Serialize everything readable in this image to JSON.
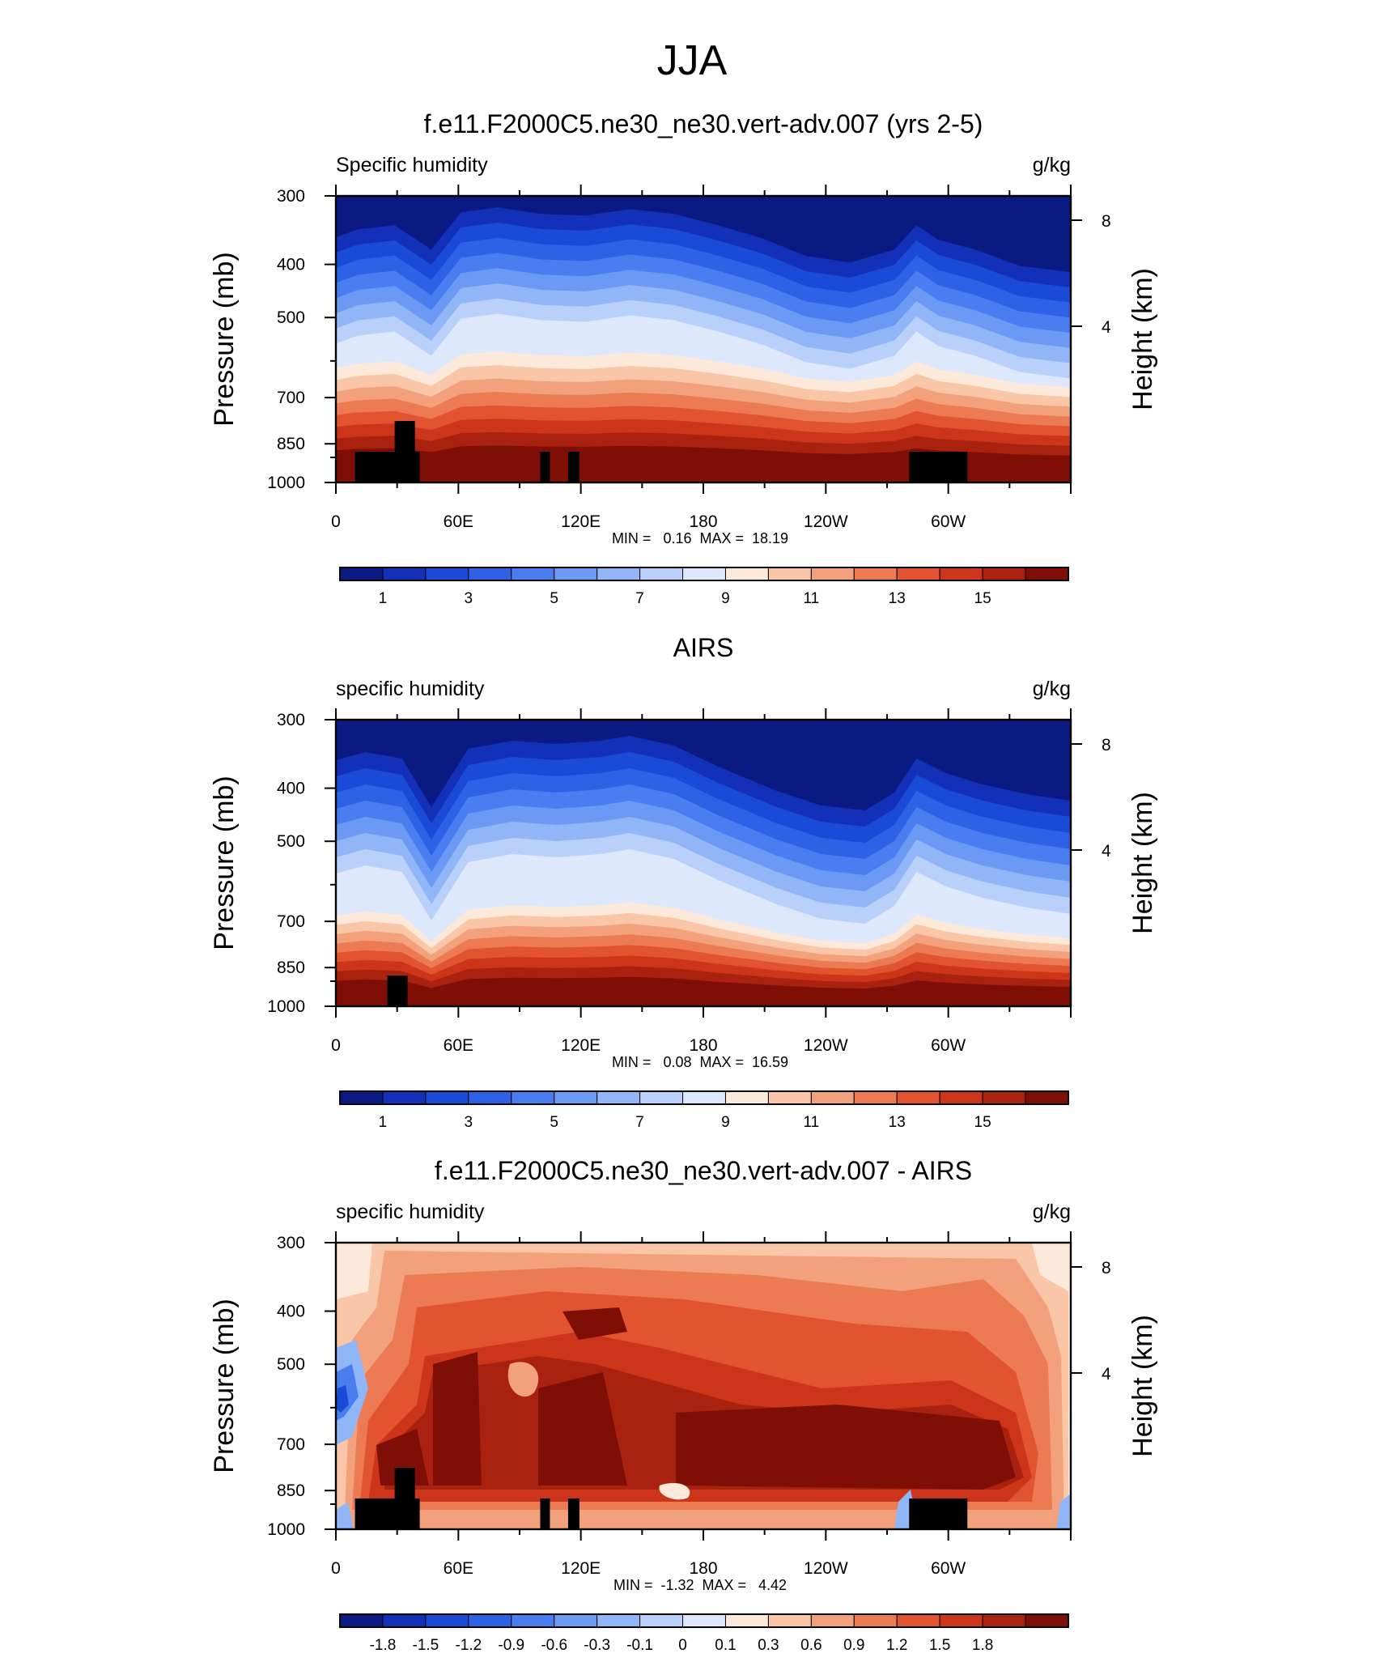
{
  "page": {
    "title": "JJA"
  },
  "chart_data": [
    {
      "type": "heatmap",
      "title": "f.e11.F2000C5.ne30_ne30.vert-adv.007 (yrs 2-5)",
      "left_label": "Specific humidity",
      "units": "g/kg",
      "ylabel": "Pressure (mb)",
      "ylabel_right": "Height (km)",
      "x_ticks": [
        "0",
        "60E",
        "120E",
        "180",
        "120W",
        "60W"
      ],
      "y_ticks": [
        "300",
        "400",
        "500",
        "700",
        "850",
        "1000"
      ],
      "y_ticks_right": [
        "8",
        "4"
      ],
      "min_max": "MIN =   0.16  MAX =  18.19",
      "colorbar_labels": [
        "1",
        "3",
        "5",
        "7",
        "9",
        "11",
        "13",
        "15"
      ],
      "colors": [
        "#0b1a82",
        "#1230b8",
        "#1a4ad8",
        "#2e62e6",
        "#4a7ef0",
        "#6b99f3",
        "#91b6f7",
        "#b9d0fa",
        "#dde8fc",
        "#fde9d9",
        "#f9c6a8",
        "#f3a07c",
        "#ec7a52",
        "#e2532f",
        "#cc3519",
        "#a9220f",
        "#7f0f06"
      ]
    },
    {
      "type": "heatmap",
      "title": "AIRS",
      "left_label": "specific humidity",
      "units": "g/kg",
      "ylabel": "Pressure (mb)",
      "ylabel_right": "Height (km)",
      "x_ticks": [
        "0",
        "60E",
        "120E",
        "180",
        "120W",
        "60W"
      ],
      "y_ticks": [
        "300",
        "400",
        "500",
        "700",
        "850",
        "1000"
      ],
      "y_ticks_right": [
        "8",
        "4"
      ],
      "min_max": "MIN =   0.08  MAX =  16.59",
      "colorbar_labels": [
        "1",
        "3",
        "5",
        "7",
        "9",
        "11",
        "13",
        "15"
      ],
      "colors": [
        "#0b1a82",
        "#1230b8",
        "#1a4ad8",
        "#2e62e6",
        "#4a7ef0",
        "#6b99f3",
        "#91b6f7",
        "#b9d0fa",
        "#dde8fc",
        "#fde9d9",
        "#f9c6a8",
        "#f3a07c",
        "#ec7a52",
        "#e2532f",
        "#cc3519",
        "#a9220f",
        "#7f0f06"
      ]
    },
    {
      "type": "heatmap",
      "title": "f.e11.F2000C5.ne30_ne30.vert-adv.007 - AIRS",
      "left_label": "specific humidity",
      "units": "g/kg",
      "ylabel": "Pressure (mb)",
      "ylabel_right": "Height (km)",
      "x_ticks": [
        "0",
        "60E",
        "120E",
        "180",
        "120W",
        "60W"
      ],
      "y_ticks": [
        "300",
        "400",
        "500",
        "700",
        "850",
        "1000"
      ],
      "y_ticks_right": [
        "8",
        "4"
      ],
      "min_max": "MIN =  -1.32  MAX =   4.42",
      "colorbar_labels": [
        "-1.8",
        "-1.5",
        "-1.2",
        "-0.9",
        "-0.6",
        "-0.3",
        "-0.1",
        "0",
        "0.1",
        "0.3",
        "0.6",
        "0.9",
        "1.2",
        "1.5",
        "1.8"
      ],
      "colors": [
        "#0b1a82",
        "#1230b8",
        "#1a4ad8",
        "#2e62e6",
        "#4a7ef0",
        "#6b99f3",
        "#91b6f7",
        "#b9d0fa",
        "#dde8fc",
        "#fde9d9",
        "#f9c6a8",
        "#f3a07c",
        "#ec7a52",
        "#e2532f",
        "#cc3519",
        "#a9220f",
        "#7f0f06"
      ]
    }
  ]
}
